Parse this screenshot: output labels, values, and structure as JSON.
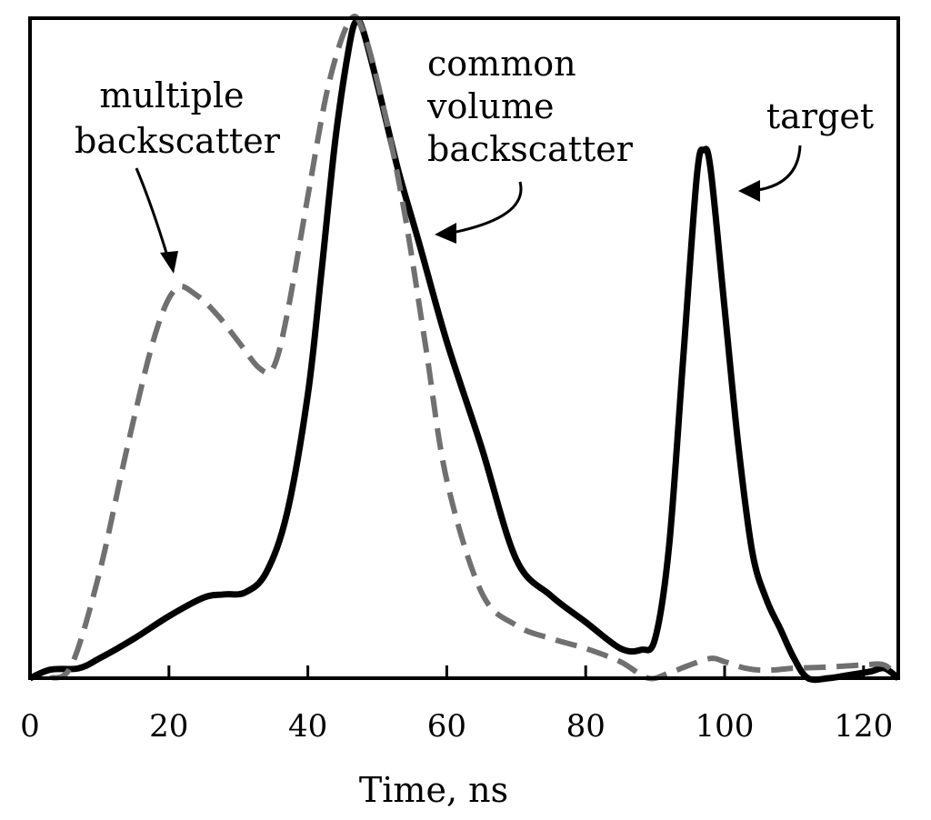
{
  "chart_data": {
    "type": "line",
    "title": "",
    "xlabel": "Time, ns",
    "ylabel": "",
    "xlim": [
      0,
      125
    ],
    "ylim": [
      0,
      1.0
    ],
    "x_ticks": [
      0,
      20,
      40,
      60,
      80,
      100,
      120
    ],
    "x_tick_labels": [
      "0",
      "20",
      "40",
      "60",
      "80",
      "100",
      "120"
    ],
    "grid": false,
    "legend": "none",
    "series": [
      {
        "style": "solid",
        "color": "#000000",
        "points": [
          [
            0,
            0.0
          ],
          [
            3,
            0.013
          ],
          [
            7,
            0.015
          ],
          [
            10,
            0.03
          ],
          [
            15,
            0.06
          ],
          [
            20,
            0.094
          ],
          [
            25,
            0.122
          ],
          [
            28,
            0.127
          ],
          [
            31,
            0.13
          ],
          [
            34,
            0.16
          ],
          [
            37,
            0.25
          ],
          [
            40,
            0.43
          ],
          [
            42,
            0.62
          ],
          [
            44,
            0.82
          ],
          [
            46,
            0.96
          ],
          [
            47,
            0.996
          ],
          [
            48,
            0.98
          ],
          [
            50,
            0.9
          ],
          [
            53,
            0.77
          ],
          [
            56,
            0.66
          ],
          [
            60,
            0.51
          ],
          [
            65,
            0.35
          ],
          [
            70,
            0.18
          ],
          [
            75,
            0.125
          ],
          [
            80,
            0.085
          ],
          [
            85,
            0.045
          ],
          [
            88,
            0.043
          ],
          [
            90,
            0.06
          ],
          [
            92,
            0.2
          ],
          [
            94,
            0.48
          ],
          [
            96,
            0.76
          ],
          [
            97,
            0.8
          ],
          [
            98,
            0.77
          ],
          [
            100,
            0.56
          ],
          [
            102,
            0.35
          ],
          [
            104,
            0.19
          ],
          [
            106,
            0.12
          ],
          [
            108,
            0.075
          ],
          [
            110,
            0.03
          ],
          [
            112,
            0.0
          ],
          [
            115,
            0.0
          ],
          [
            118,
            0.005
          ],
          [
            121,
            0.01
          ],
          [
            123,
            0.015
          ],
          [
            125,
            0.0
          ]
        ]
      },
      {
        "style": "dashed",
        "color": "#707070",
        "points": [
          [
            3,
            0.0
          ],
          [
            6,
            0.02
          ],
          [
            10,
            0.16
          ],
          [
            14,
            0.35
          ],
          [
            18,
            0.52
          ],
          [
            21,
            0.59
          ],
          [
            24,
            0.58
          ],
          [
            27,
            0.55
          ],
          [
            30,
            0.51
          ],
          [
            33,
            0.47
          ],
          [
            35,
            0.47
          ],
          [
            37,
            0.55
          ],
          [
            40,
            0.73
          ],
          [
            43,
            0.9
          ],
          [
            46,
            0.996
          ],
          [
            48,
            0.98
          ],
          [
            51,
            0.86
          ],
          [
            54,
            0.7
          ],
          [
            57,
            0.5
          ],
          [
            60,
            0.3
          ],
          [
            65,
            0.13
          ],
          [
            70,
            0.08
          ],
          [
            75,
            0.06
          ],
          [
            80,
            0.045
          ],
          [
            85,
            0.025
          ],
          [
            89,
            0.0
          ],
          [
            92,
            0.008
          ],
          [
            95,
            0.02
          ],
          [
            98,
            0.03
          ],
          [
            100,
            0.025
          ],
          [
            103,
            0.015
          ],
          [
            106,
            0.012
          ],
          [
            110,
            0.015
          ],
          [
            115,
            0.017
          ],
          [
            120,
            0.02
          ],
          [
            123,
            0.02
          ],
          [
            125,
            0.0
          ]
        ]
      }
    ],
    "annotations": [
      {
        "lines": [
          "multiple",
          "backscatter"
        ]
      },
      {
        "lines": [
          "common",
          "volume",
          "backscatter"
        ]
      },
      {
        "lines": [
          "target"
        ]
      }
    ]
  }
}
